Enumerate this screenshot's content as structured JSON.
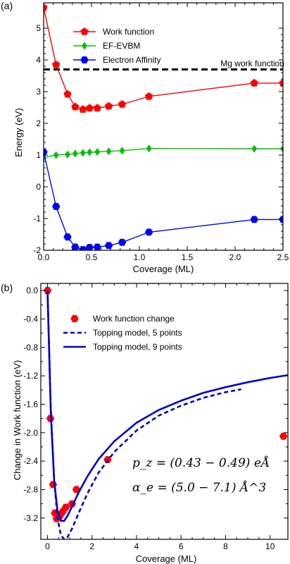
{
  "chart_data": [
    {
      "panel_label": "(a)",
      "type": "line",
      "xlabel": "Coverage (ML)",
      "ylabel": "Energy (eV)",
      "xlim": [
        0,
        2.5
      ],
      "ylim": [
        -2,
        5.8
      ],
      "xticks": [
        "0.0",
        "0.5",
        "1.0",
        "1.5",
        "2.0",
        "2.5"
      ],
      "yticks": [
        "-2",
        "-1",
        "0",
        "1",
        "2",
        "3",
        "4",
        "5"
      ],
      "legend_position": "upper-left",
      "series": [
        {
          "name": "Work function",
          "color": "#ff0000",
          "marker": "pentagon",
          "x": [
            0.0,
            0.13,
            0.25,
            0.33,
            0.41,
            0.48,
            0.56,
            0.68,
            0.82,
            1.1,
            2.2,
            2.5
          ],
          "y": [
            5.65,
            3.85,
            2.92,
            2.52,
            2.44,
            2.48,
            2.48,
            2.54,
            2.6,
            2.85,
            3.27,
            3.27
          ]
        },
        {
          "name": "EF-EVBM",
          "color": "#00c000",
          "marker": "diamond",
          "x": [
            0.0,
            0.13,
            0.25,
            0.33,
            0.41,
            0.48,
            0.56,
            0.68,
            0.82,
            1.1,
            2.2,
            2.5
          ],
          "y": [
            0.92,
            1.0,
            1.02,
            1.05,
            1.07,
            1.09,
            1.1,
            1.12,
            1.14,
            1.21,
            1.2,
            1.2
          ]
        },
        {
          "name": "Electron Affinity",
          "color": "#0000ff",
          "marker": "hexagon",
          "x": [
            0.0,
            0.13,
            0.25,
            0.33,
            0.41,
            0.48,
            0.56,
            0.68,
            0.82,
            1.1,
            2.2,
            2.5
          ],
          "y": [
            1.1,
            -0.62,
            -1.58,
            -1.9,
            -1.98,
            -1.91,
            -1.9,
            -1.85,
            -1.75,
            -1.43,
            -1.03,
            -1.03
          ]
        }
      ],
      "reference_line": {
        "label": "Mg work function",
        "y": 3.7,
        "style": "dashed",
        "color": "#000000"
      }
    },
    {
      "panel_label": "(b)",
      "type": "scatter",
      "xlabel": "Coverage (ML)",
      "ylabel": "Change in Work function (eV)",
      "xlim": [
        -0.3,
        10.8
      ],
      "ylim": [
        -3.5,
        0.1
      ],
      "xticks": [
        "0",
        "2",
        "4",
        "6",
        "8",
        "10"
      ],
      "yticks": [
        "0.0",
        "-0.4",
        "-0.8",
        "-1.2",
        "-1.6",
        "-2.0",
        "-2.4",
        "-2.8",
        "-3.2"
      ],
      "legend_position": "upper-left",
      "series": [
        {
          "name": "Work function change",
          "color": "#ff0000",
          "marker": "hexagon",
          "style": "points",
          "x": [
            0.0,
            0.13,
            0.25,
            0.33,
            0.41,
            0.48,
            0.56,
            0.68,
            0.82,
            1.1,
            1.3,
            2.7,
            10.6
          ],
          "y": [
            0.0,
            -1.8,
            -2.73,
            -3.13,
            -3.21,
            -3.17,
            -3.17,
            -3.11,
            -3.05,
            -3.0,
            -2.8,
            -2.38,
            -2.05
          ]
        },
        {
          "name": "Topping model, 5 points",
          "color": "#0000cc",
          "style": "dashed",
          "x": [
            0.0,
            0.15,
            0.3,
            0.45,
            0.6,
            0.75,
            0.9,
            1.1,
            1.4,
            1.8,
            2.3,
            3.0,
            4.0,
            5.0,
            6.0,
            7.0,
            8.0,
            8.7
          ],
          "y": [
            0.0,
            -1.66,
            -2.67,
            -3.2,
            -3.44,
            -3.5,
            -3.47,
            -3.35,
            -3.13,
            -2.85,
            -2.56,
            -2.27,
            -1.97,
            -1.76,
            -1.62,
            -1.51,
            -1.43,
            -1.39
          ]
        },
        {
          "name": "Topping model, 9 points",
          "color": "#0000cc",
          "style": "solid",
          "x": [
            0.0,
            0.15,
            0.3,
            0.45,
            0.6,
            0.75,
            0.9,
            1.1,
            1.4,
            1.8,
            2.3,
            3.0,
            4.0,
            5.0,
            6.0,
            7.0,
            8.0,
            9.0,
            10.0,
            10.8
          ],
          "y": [
            0.0,
            -1.73,
            -2.68,
            -3.1,
            -3.24,
            -3.24,
            -3.17,
            -3.04,
            -2.84,
            -2.61,
            -2.37,
            -2.12,
            -1.86,
            -1.68,
            -1.55,
            -1.44,
            -1.36,
            -1.29,
            -1.23,
            -1.19
          ]
        }
      ],
      "annotations": [
        {
          "text": "p_z = (0.43 − 0.49) eÅ"
        },
        {
          "text": "α_e = (5.0 − 7.1) Å^3"
        }
      ]
    }
  ]
}
